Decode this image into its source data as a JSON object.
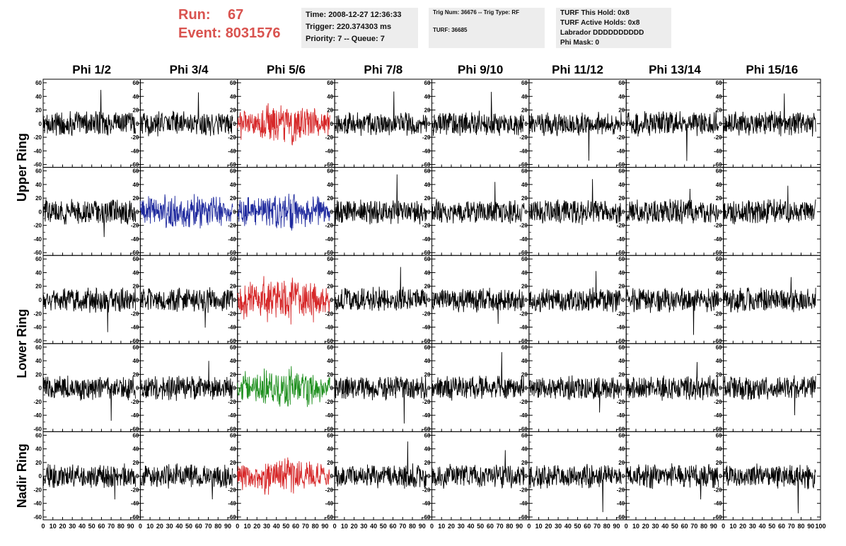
{
  "header": {
    "run_label": "Run:",
    "run_value": "67",
    "event_label": "Event:",
    "event_value": "8031576"
  },
  "info_time": {
    "time": "Time: 2008-12-27 12:36:33",
    "trigger": "Trigger: 220.374303 ms",
    "priority": "Priority: 7 -- Queue: 7"
  },
  "info_trig": {
    "trig": "Trig Num: 36676 -- Trig Type: RF",
    "turf": "TURF: 36685"
  },
  "info_turf": {
    "hold": "TURF This Hold: 0x8",
    "active": "TURF Active Holds: 0x8",
    "labrador": "Labrador DDDDDDDDDD",
    "mask": "Phi Mask: 0"
  },
  "colors": {
    "default": "#000000",
    "red": "#d62728",
    "blue": "#1f2a9e",
    "green": "#1e8f1e",
    "header_red": "#d9534f"
  },
  "chart_data": {
    "type": "line",
    "columns": [
      "Phi 1/2",
      "Phi 3/4",
      "Phi 5/6",
      "Phi 7/8",
      "Phi 9/10",
      "Phi 11/12",
      "Phi 13/14",
      "Phi 15/16"
    ],
    "row_labels": [
      "Upper Ring",
      "Lower Ring",
      "Nadir Ring"
    ],
    "row_label_spans": [
      [
        0,
        1
      ],
      [
        2,
        3
      ],
      [
        4,
        4
      ]
    ],
    "rows": 5,
    "ylim": [
      -60,
      60
    ],
    "yticks": [
      -60,
      -40,
      -20,
      0,
      20,
      40,
      60
    ],
    "xlim": [
      0,
      100
    ],
    "xticks": [
      0,
      10,
      20,
      30,
      40,
      50,
      60,
      70,
      80,
      90,
      100
    ],
    "waveform": {
      "x_start": 0,
      "x_end": 95,
      "samples": 260,
      "typical_amplitude": 15,
      "peak_amplitude": 55
    },
    "highlights": [
      {
        "row": 0,
        "col": 2,
        "color": "red",
        "amplitude": 24
      },
      {
        "row": 1,
        "col": 1,
        "color": "blue",
        "amplitude": 22
      },
      {
        "row": 1,
        "col": 2,
        "color": "blue",
        "amplitude": 24
      },
      {
        "row": 2,
        "col": 2,
        "color": "red",
        "amplitude": 28
      },
      {
        "row": 3,
        "col": 2,
        "color": "green",
        "amplitude": 24
      },
      {
        "row": 4,
        "col": 2,
        "color": "red",
        "amplitude": 22
      }
    ]
  }
}
